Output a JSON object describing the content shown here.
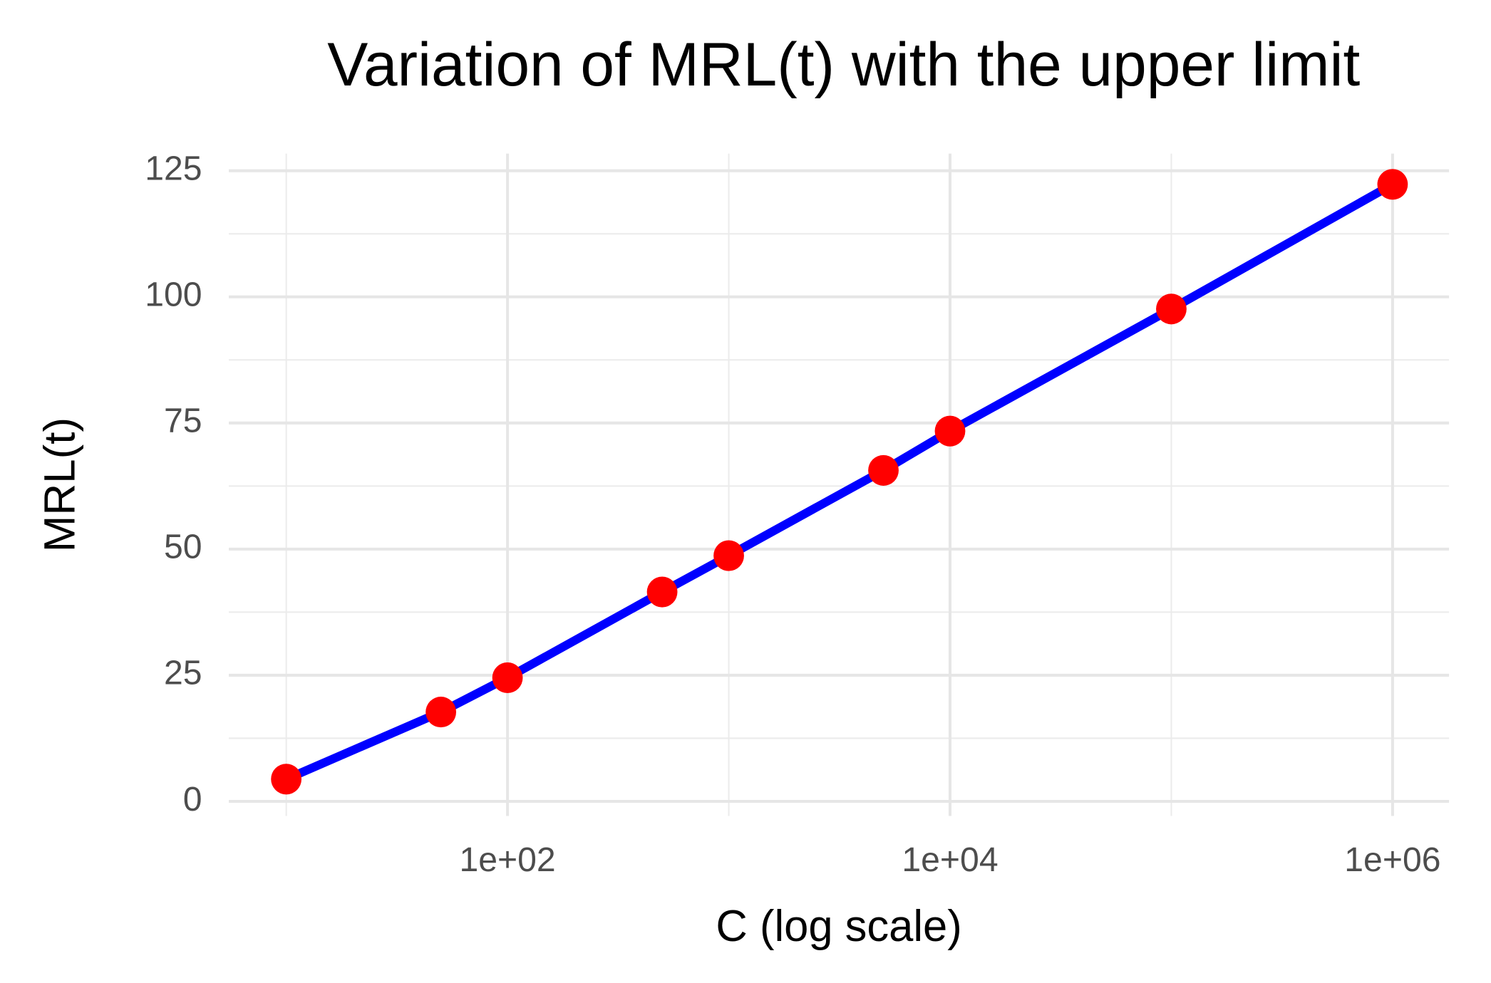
{
  "chart_data": {
    "type": "line",
    "title": "Variation of MRL(t) with the upper limit",
    "x_label": "C (log scale)",
    "y_label": "MRL(t)",
    "x": [
      10,
      50,
      100,
      500,
      1000,
      5000,
      10000,
      100000,
      1000000
    ],
    "series": [
      {
        "name": "MRL(t)",
        "color": "#0000ff",
        "marker_color": "#ff0000",
        "values": [
          4.4,
          17.7,
          24.5,
          41.5,
          48.7,
          65.6,
          73.4,
          97.6,
          122.3
        ]
      }
    ],
    "x_log_scale": true,
    "xlim": [
      5.5,
      1800000
    ],
    "ylim": [
      -2.9,
      128.4
    ],
    "xticks": [
      {
        "value": 100,
        "label": "1e+02"
      },
      {
        "value": 10000,
        "label": "1e+04"
      },
      {
        "value": 1000000,
        "label": "1e+06"
      }
    ],
    "yticks": [
      0,
      25,
      50,
      75,
      100,
      125
    ],
    "grid": true
  }
}
